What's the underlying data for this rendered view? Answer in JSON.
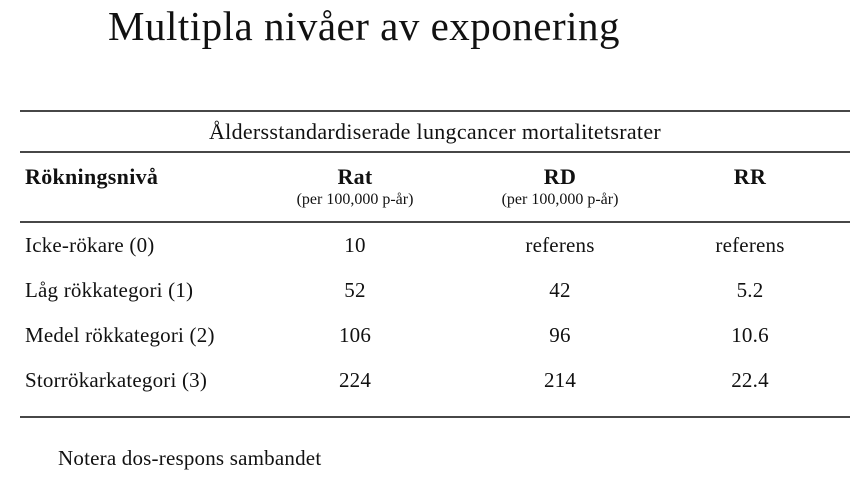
{
  "slide": {
    "title": "Multipla nivåer av exponering",
    "note": "Notera dos-respons sambandet"
  },
  "table": {
    "caption": "Åldersstandardiserade lungcancer mortalitetsrater",
    "columns": [
      {
        "label": "Rökningsnivå",
        "sublabel": ""
      },
      {
        "label": "Rat",
        "sublabel": "(per 100,000 p-år)"
      },
      {
        "label": "RD",
        "sublabel": "(per 100,000 p-år)"
      },
      {
        "label": "RR",
        "sublabel": ""
      }
    ],
    "rows": [
      {
        "label": "Icke-rökare (0)",
        "values": [
          "10",
          "referens",
          "referens"
        ]
      },
      {
        "label": "Låg rökkategori (1)",
        "values": [
          "52",
          "42",
          "5.2"
        ]
      },
      {
        "label": "Medel rökkategori (2)",
        "values": [
          "106",
          "96",
          "10.6"
        ]
      },
      {
        "label": "Storrökarkategori (3)",
        "values": [
          "224",
          "214",
          "22.4"
        ]
      }
    ]
  },
  "colors": {
    "background": "#ffffff",
    "text": "#111111",
    "rule": "#474747"
  }
}
